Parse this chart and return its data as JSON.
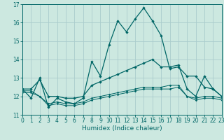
{
  "xlabel": "Humidex (Indice chaleur)",
  "background_color": "#cce8e0",
  "grid_color": "#aacccc",
  "line_color": "#006666",
  "xlim": [
    0,
    23
  ],
  "ylim": [
    11,
    17
  ],
  "yticks": [
    11,
    12,
    13,
    14,
    15,
    16,
    17
  ],
  "xticks": [
    0,
    1,
    2,
    3,
    4,
    5,
    6,
    7,
    8,
    9,
    10,
    11,
    12,
    13,
    14,
    15,
    16,
    17,
    18,
    19,
    20,
    21,
    22,
    23
  ],
  "series1_x": [
    0,
    1,
    2,
    3,
    4,
    5,
    6,
    7,
    8,
    9,
    10,
    11,
    12,
    13,
    14,
    15,
    16,
    17,
    18,
    19,
    20,
    21,
    22,
    23
  ],
  "series1_y": [
    12.4,
    11.9,
    13.0,
    11.4,
    11.9,
    11.7,
    11.6,
    11.9,
    13.9,
    13.1,
    14.8,
    16.1,
    15.5,
    16.2,
    16.8,
    16.1,
    15.3,
    13.5,
    13.6,
    13.1,
    13.1,
    12.5,
    12.4,
    12.0
  ],
  "series2_x": [
    0,
    1,
    2,
    3,
    4,
    5,
    6,
    7,
    8,
    9,
    10,
    11,
    12,
    13,
    14,
    15,
    16,
    17,
    18,
    19,
    20,
    21,
    22,
    23
  ],
  "series2_y": [
    12.4,
    12.4,
    12.9,
    12.0,
    12.0,
    11.9,
    11.9,
    12.0,
    12.6,
    12.8,
    13.0,
    13.2,
    13.4,
    13.6,
    13.8,
    14.0,
    13.6,
    13.6,
    13.7,
    12.4,
    12.0,
    13.1,
    12.4,
    12.0
  ],
  "series3_x": [
    0,
    1,
    2,
    3,
    4,
    5,
    6,
    7,
    8,
    9,
    10,
    11,
    12,
    13,
    14,
    15,
    16,
    17,
    18,
    19,
    20,
    21,
    22,
    23
  ],
  "series3_y": [
    12.3,
    12.3,
    12.0,
    11.6,
    11.7,
    11.6,
    11.6,
    11.7,
    11.9,
    12.0,
    12.1,
    12.2,
    12.3,
    12.4,
    12.5,
    12.5,
    12.5,
    12.6,
    12.6,
    12.0,
    11.9,
    12.0,
    12.0,
    11.9
  ],
  "series4_x": [
    0,
    1,
    2,
    3,
    4,
    5,
    6,
    7,
    8,
    9,
    10,
    11,
    12,
    13,
    14,
    15,
    16,
    17,
    18,
    19,
    20,
    21,
    22,
    23
  ],
  "series4_y": [
    12.2,
    12.2,
    12.0,
    11.5,
    11.6,
    11.5,
    11.5,
    11.6,
    11.8,
    11.9,
    12.0,
    12.1,
    12.2,
    12.3,
    12.4,
    12.4,
    12.4,
    12.4,
    12.5,
    12.0,
    11.8,
    11.9,
    11.9,
    11.8
  ]
}
